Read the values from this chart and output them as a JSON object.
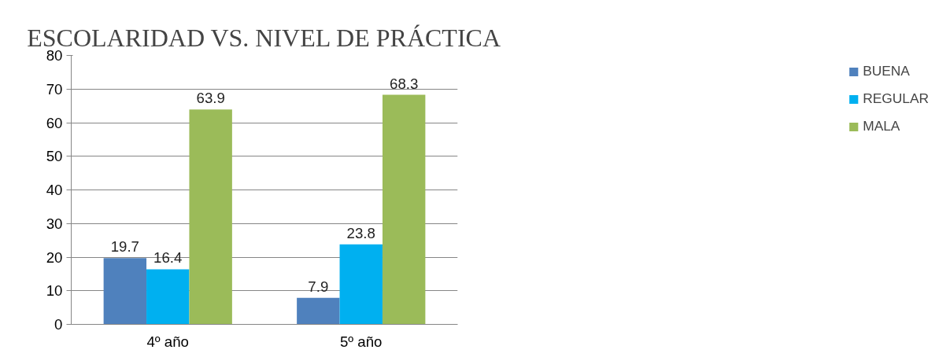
{
  "chart_data": {
    "type": "bar",
    "title": "ESCOLARIDAD VS. NIVEL DE PRÁCTICA",
    "categories": [
      "4º año",
      "5º año"
    ],
    "series": [
      {
        "name": "BUENA",
        "color": "#4f81bd",
        "values": [
          19.7,
          7.9
        ]
      },
      {
        "name": "REGULAR",
        "color": "#00b0f0",
        "values": [
          16.4,
          23.8
        ]
      },
      {
        "name": "MALA",
        "color": "#9bbb59",
        "values": [
          63.9,
          68.3
        ]
      }
    ],
    "ylim": [
      0,
      80
    ],
    "yticks": [
      0,
      10,
      20,
      30,
      40,
      50,
      60,
      70,
      80
    ],
    "grid": "y",
    "legend": "right",
    "data_labels": true
  }
}
